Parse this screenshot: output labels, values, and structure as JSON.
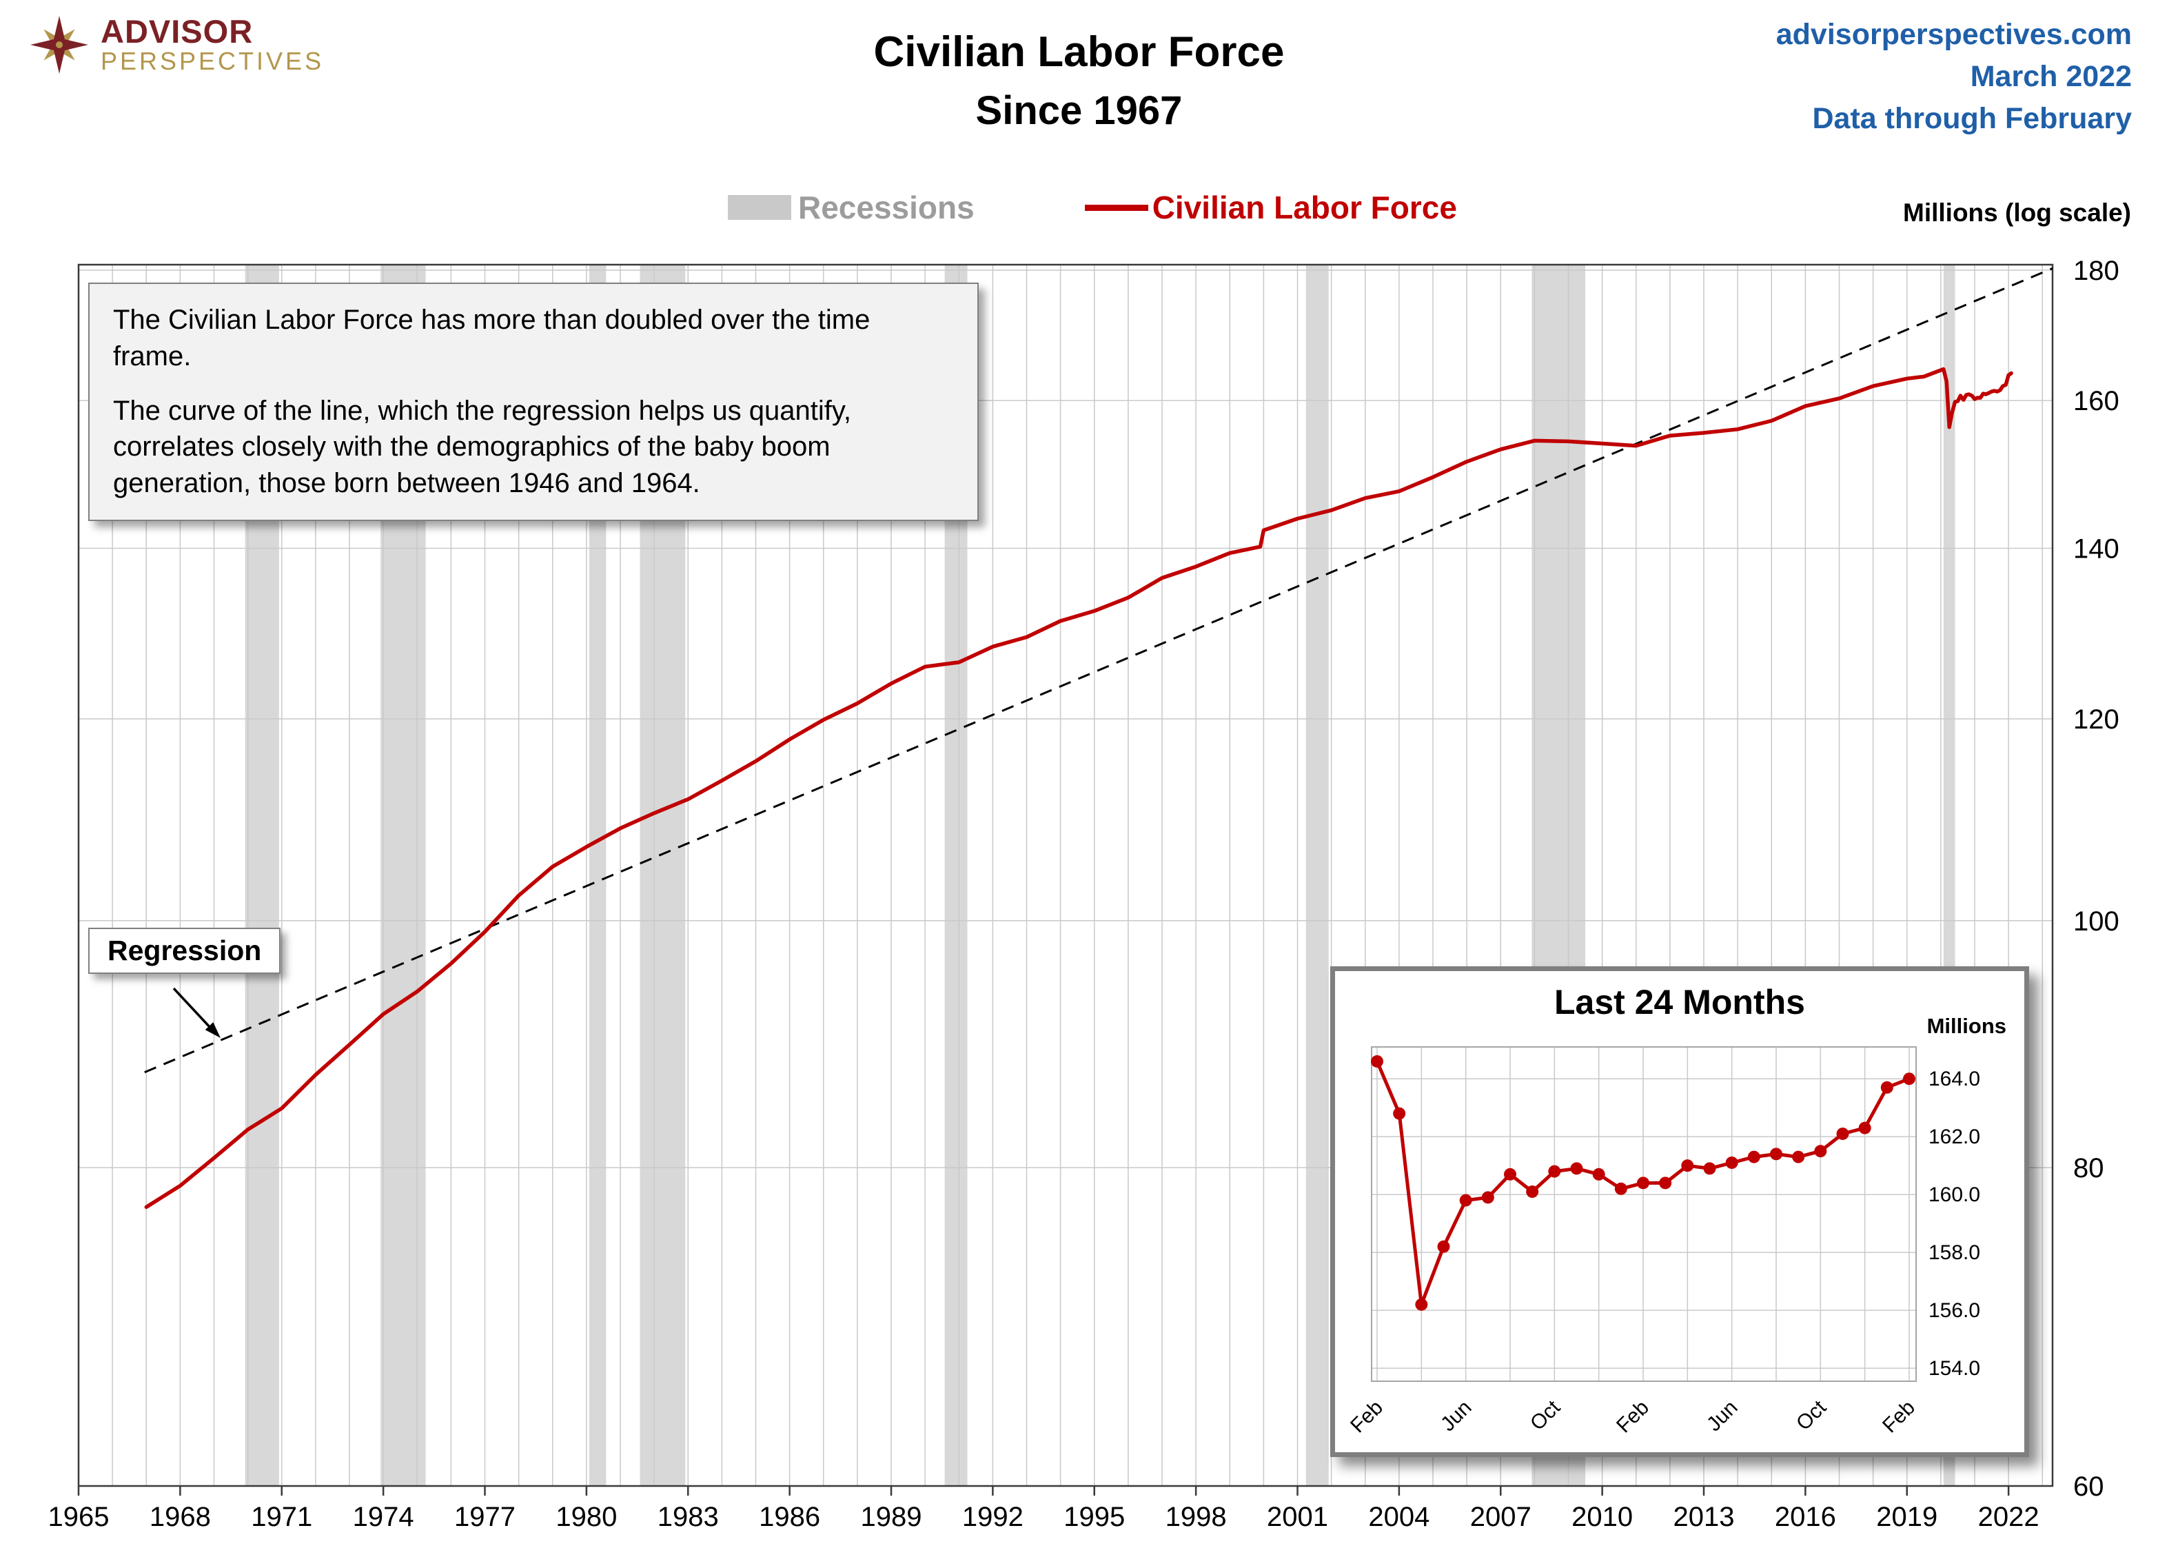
{
  "header": {
    "logo_line1": "ADVISOR",
    "logo_line2": "PERSPECTIVES",
    "title_line1": "Civilian Labor Force",
    "title_line2": "Since 1967",
    "source_site": "advisorperspectives.com",
    "source_date": "March 2022",
    "source_note": "Data through February"
  },
  "legend": {
    "recessions_label": "Recessions",
    "series_label": "Civilian Labor Force"
  },
  "annotation": {
    "para1": "The Civilian Labor Force has more than doubled over the time frame.",
    "para2": "The curve of the line, which the regression helps us quantify, correlates closely with the demographics of the baby boom generation, those born between 1946 and 1964."
  },
  "regression_label": "Regression",
  "colors": {
    "series": "#C00000",
    "recession": "#D8D8D8",
    "grid": "#C9C9C9",
    "blue_text": "#1F5FA8",
    "legend_gray": "#9C9C9C",
    "logo_maroon": "#7B2125",
    "logo_gold": "#B2964B"
  },
  "chart_data": [
    {
      "id": "main",
      "type": "line",
      "title": "Civilian Labor Force Since 1967",
      "xlabel": "",
      "ylabel": "Millions (log scale)",
      "y_scale": "log",
      "xlim": [
        1965,
        2023.3
      ],
      "ylim": [
        60,
        180
      ],
      "x_ticks": [
        1965,
        1968,
        1971,
        1974,
        1977,
        1980,
        1983,
        1986,
        1989,
        1992,
        1995,
        1998,
        2001,
        2004,
        2007,
        2010,
        2013,
        2016,
        2019,
        2022
      ],
      "y_ticks": [
        60,
        80,
        100,
        120,
        140,
        160,
        180
      ],
      "grid": true,
      "legend_position": "top",
      "recessions": [
        [
          1969.92,
          1970.92
        ],
        [
          1973.92,
          1975.25
        ],
        [
          1980.08,
          1980.58
        ],
        [
          1981.58,
          1982.92
        ],
        [
          1990.58,
          1991.25
        ],
        [
          2001.25,
          2001.92
        ],
        [
          2007.92,
          2009.5
        ],
        [
          2020.08,
          2020.42
        ]
      ],
      "regression_line": [
        [
          1966.95,
          87.2
        ],
        [
          2023.3,
          180.3
        ]
      ],
      "series": [
        {
          "name": "Civilian Labor Force",
          "color": "#C00000",
          "points": [
            [
              1967,
              77.2
            ],
            [
              1968,
              78.7
            ],
            [
              1969,
              80.7
            ],
            [
              1970,
              82.8
            ],
            [
              1971,
              84.4
            ],
            [
              1972,
              87.0
            ],
            [
              1973,
              89.4
            ],
            [
              1974,
              91.9
            ],
            [
              1975,
              93.8
            ],
            [
              1976,
              96.2
            ],
            [
              1977,
              99.0
            ],
            [
              1978,
              102.3
            ],
            [
              1979,
              105.0
            ],
            [
              1980,
              106.9
            ],
            [
              1981,
              108.7
            ],
            [
              1982,
              110.2
            ],
            [
              1983,
              111.6
            ],
            [
              1984,
              113.5
            ],
            [
              1985,
              115.5
            ],
            [
              1986,
              117.8
            ],
            [
              1987,
              119.9
            ],
            [
              1988,
              121.7
            ],
            [
              1989,
              123.9
            ],
            [
              1990,
              125.8
            ],
            [
              1991,
              126.3
            ],
            [
              1992,
              128.1
            ],
            [
              1993,
              129.2
            ],
            [
              1994,
              131.1
            ],
            [
              1995,
              132.3
            ],
            [
              1996,
              133.9
            ],
            [
              1997,
              136.3
            ],
            [
              1998,
              137.7
            ],
            [
              1999,
              139.4
            ],
            [
              1999.9,
              140.2
            ],
            [
              2000,
              142.3
            ],
            [
              2001,
              143.8
            ],
            [
              2002,
              144.9
            ],
            [
              2003,
              146.5
            ],
            [
              2004,
              147.4
            ],
            [
              2005,
              149.3
            ],
            [
              2006,
              151.4
            ],
            [
              2007,
              153.1
            ],
            [
              2008,
              154.3
            ],
            [
              2009,
              154.2
            ],
            [
              2010,
              153.9
            ],
            [
              2011,
              153.6
            ],
            [
              2012,
              155.0
            ],
            [
              2013,
              155.4
            ],
            [
              2014,
              155.9
            ],
            [
              2015,
              157.1
            ],
            [
              2016,
              159.2
            ],
            [
              2017,
              160.3
            ],
            [
              2018,
              162.1
            ],
            [
              2019,
              163.2
            ],
            [
              2019.5,
              163.5
            ],
            [
              2020.08,
              164.6
            ],
            [
              2020.17,
              162.8
            ],
            [
              2020.25,
              156.2
            ],
            [
              2020.33,
              158.2
            ],
            [
              2020.42,
              159.8
            ],
            [
              2020.5,
              159.9
            ],
            [
              2020.58,
              160.7
            ],
            [
              2020.67,
              160.1
            ],
            [
              2020.75,
              160.8
            ],
            [
              2020.83,
              160.9
            ],
            [
              2020.92,
              160.7
            ],
            [
              2021.0,
              160.2
            ],
            [
              2021.08,
              160.4
            ],
            [
              2021.17,
              160.4
            ],
            [
              2021.25,
              161.0
            ],
            [
              2021.33,
              160.9
            ],
            [
              2021.42,
              161.1
            ],
            [
              2021.5,
              161.3
            ],
            [
              2021.58,
              161.4
            ],
            [
              2021.67,
              161.3
            ],
            [
              2021.75,
              161.5
            ],
            [
              2021.83,
              162.1
            ],
            [
              2021.92,
              162.3
            ],
            [
              2022.0,
              163.7
            ],
            [
              2022.08,
              164.0
            ]
          ]
        }
      ]
    },
    {
      "id": "inset",
      "type": "line",
      "title": "Last 24 Months",
      "xlabel": "",
      "ylabel": "Millions",
      "ylim": [
        153.55,
        165.1
      ],
      "y_ticks": [
        154.0,
        156.0,
        158.0,
        160.0,
        162.0,
        164.0
      ],
      "x_tick_labels": [
        "Feb",
        "Jun",
        "Oct",
        "Feb",
        "Jun",
        "Oct",
        "Feb"
      ],
      "x_tick_indices": [
        0,
        4,
        8,
        12,
        16,
        20,
        24
      ],
      "grid": true,
      "values": [
        164.6,
        162.8,
        156.2,
        158.2,
        159.8,
        159.9,
        160.7,
        160.1,
        160.8,
        160.9,
        160.7,
        160.2,
        160.4,
        160.4,
        161.0,
        160.9,
        161.1,
        161.3,
        161.4,
        161.3,
        161.5,
        162.1,
        162.3,
        163.7,
        164.0
      ]
    }
  ]
}
